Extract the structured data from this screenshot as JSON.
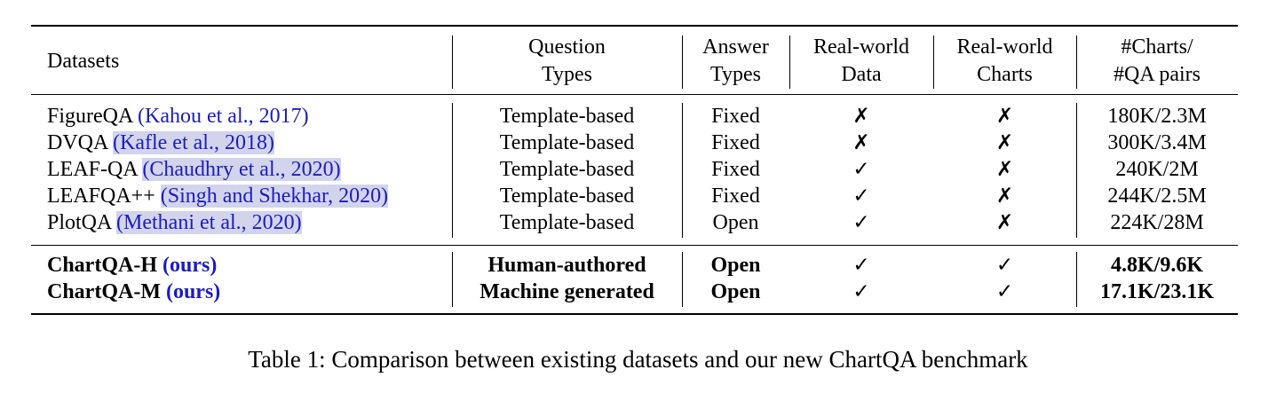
{
  "table": {
    "headers": {
      "datasets": "Datasets",
      "question_types": [
        "Question",
        "Types"
      ],
      "answer_types": [
        "Answer",
        "Types"
      ],
      "real_world_data": [
        "Real-world",
        "Data"
      ],
      "real_world_charts": [
        "Real-world",
        "Charts"
      ],
      "charts_qa": [
        "#Charts/",
        "#QA pairs"
      ]
    },
    "rows": [
      {
        "name": "FigureQA",
        "cite": "(Kahou et al., 2017)",
        "question": "Template-based",
        "answer": "Fixed",
        "data": "✗",
        "charts": "✗",
        "count": "180K/2.3M"
      },
      {
        "name": "DVQA",
        "cite": "(Kafle et al., 2018)",
        "question": "Template-based",
        "answer": "Fixed",
        "data": "✗",
        "charts": "✗",
        "count": "300K/3.4M"
      },
      {
        "name": "LEAF-QA",
        "cite": "(Chaudhry et al., 2020)",
        "question": "Template-based",
        "answer": "Fixed",
        "data": "✓",
        "charts": "✗",
        "count": "240K/2M"
      },
      {
        "name": "LEAFQA++",
        "cite": "(Singh and Shekhar, 2020)",
        "question": "Template-based",
        "answer": "Fixed",
        "data": "✓",
        "charts": "✗",
        "count": "244K/2.5M"
      },
      {
        "name": "PlotQA",
        "cite": "(Methani et al., 2020)",
        "question": "Template-based",
        "answer": "Open",
        "data": "✓",
        "charts": "✗",
        "count": "224K/28M"
      }
    ],
    "ours_rows": [
      {
        "name": "ChartQA-H",
        "tag": "(ours)",
        "question": "Human-authored",
        "answer": "Open",
        "data": "✓",
        "charts": "✓",
        "count": "4.8K/9.6K"
      },
      {
        "name": "ChartQA-M",
        "tag": "(ours)",
        "question": "Machine generated",
        "answer": "Open",
        "data": "✓",
        "charts": "✓",
        "count": "17.1K/23.1K"
      }
    ]
  },
  "caption": "Table 1: Comparison between existing datasets and our new ChartQA benchmark"
}
